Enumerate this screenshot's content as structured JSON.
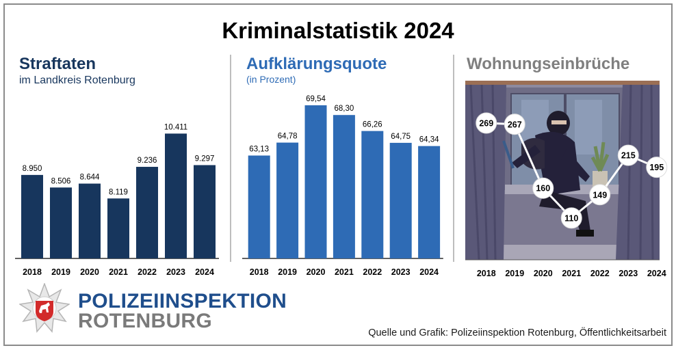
{
  "title": "Kriminalstatistik 2024",
  "colors": {
    "straftaten": "#17365d",
    "quote": "#2e6bb5",
    "einbrueche_title": "#7f7f7f",
    "police_blue": "#1f4e8c",
    "police_grey": "#7a7a7a"
  },
  "panels": {
    "straftaten": {
      "title": "Straftaten",
      "subtitle": "im Landkreis Rotenburg"
    },
    "quote": {
      "title": "Aufklärungsquote",
      "subtitle": "(in Prozent)"
    },
    "einbrueche": {
      "title": "Wohnungseinbrüche"
    }
  },
  "chart_data": [
    {
      "type": "bar",
      "title": "Straftaten im Landkreis Rotenburg",
      "categories": [
        "2018",
        "2019",
        "2020",
        "2021",
        "2022",
        "2023",
        "2024"
      ],
      "values": [
        8950,
        8506,
        8644,
        8119,
        9236,
        10411,
        9297
      ],
      "labels": [
        "8.950",
        "8.506",
        "8.644",
        "8.119",
        "9.236",
        "10.411",
        "9.297"
      ],
      "ylim": [
        6000,
        11000
      ]
    },
    {
      "type": "bar",
      "title": "Aufklärungsquote (in Prozent)",
      "categories": [
        "2018",
        "2019",
        "2020",
        "2021",
        "2022",
        "2023",
        "2024"
      ],
      "values": [
        63.13,
        64.78,
        69.54,
        68.3,
        66.26,
        64.75,
        64.34
      ],
      "labels": [
        "63,13",
        "64,78",
        "69,54",
        "68,30",
        "66,26",
        "64,75",
        "64,34"
      ],
      "ylim": [
        50,
        70.5
      ]
    },
    {
      "type": "line",
      "title": "Wohnungseinbrüche",
      "categories": [
        "2018",
        "2019",
        "2020",
        "2021",
        "2022",
        "2023",
        "2024"
      ],
      "values": [
        269,
        267,
        160,
        110,
        149,
        215,
        195
      ],
      "labels": [
        "269",
        "267",
        "160",
        "110",
        "149",
        "215",
        "195"
      ],
      "ylim": [
        40,
        340
      ]
    }
  ],
  "logo": {
    "line1": "POLIZEIINSPEKTION",
    "line2": "ROTENBURG"
  },
  "source": "Quelle und Grafik: Polizeiinspektion Rotenburg, Öffentlichkeitsarbeit"
}
